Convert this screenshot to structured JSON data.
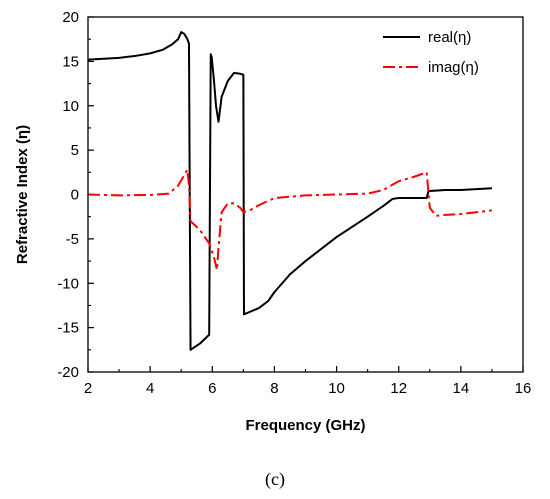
{
  "chart_data": {
    "type": "line",
    "xlabel": "Frequency (GHz)",
    "ylabel": "Refractive Index (η)",
    "xlim": [
      2,
      16
    ],
    "ylim": [
      -20,
      20
    ],
    "x_ticks": [
      2,
      4,
      6,
      8,
      10,
      12,
      14,
      16
    ],
    "y_ticks": [
      -20,
      -15,
      -10,
      -5,
      0,
      5,
      10,
      15,
      20
    ],
    "grid": false,
    "legend_position": "top-right",
    "caption": "(c)",
    "series": [
      {
        "name": "real(η)",
        "color": "#000000",
        "dash": "solid",
        "x": [
          2,
          2.5,
          3,
          3.5,
          4,
          4.4,
          4.7,
          4.9,
          5.0,
          5.1,
          5.2,
          5.25,
          5.3,
          5.6,
          5.9,
          5.95,
          5.98,
          6.05,
          6.12,
          6.2,
          6.3,
          6.5,
          6.7,
          6.9,
          7.0,
          7.02,
          7.5,
          7.8,
          8.0,
          8.5,
          9.0,
          10.0,
          11.0,
          11.5,
          11.8,
          12.0,
          12.5,
          12.9,
          12.95,
          13.0,
          13.5,
          14.0,
          14.5,
          15.0
        ],
        "y": [
          15.2,
          15.3,
          15.4,
          15.6,
          15.9,
          16.3,
          16.9,
          17.5,
          18.3,
          18.1,
          17.5,
          17.0,
          -17.5,
          -16.8,
          -15.8,
          15.8,
          15.5,
          13.0,
          10.0,
          8.2,
          11.0,
          12.8,
          13.7,
          13.6,
          13.5,
          -13.5,
          -12.8,
          -12.0,
          -11.0,
          -9.0,
          -7.5,
          -4.8,
          -2.5,
          -1.3,
          -0.5,
          -0.4,
          -0.4,
          -0.4,
          0.3,
          0.4,
          0.5,
          0.5,
          0.6,
          0.7
        ]
      },
      {
        "name": "imag(η)",
        "color": "#ff0000",
        "dash": "dash-dot",
        "x": [
          2,
          3,
          4,
          4.6,
          4.9,
          5.1,
          5.2,
          5.25,
          5.3,
          5.6,
          5.9,
          6.05,
          6.15,
          6.2,
          6.3,
          6.5,
          6.7,
          6.9,
          7.0,
          7.2,
          7.5,
          8.0,
          9.0,
          10.0,
          11.0,
          11.5,
          12.0,
          12.5,
          12.9,
          12.95,
          13.0,
          13.2,
          13.5,
          14.0,
          15.0
        ],
        "y": [
          0,
          -0.1,
          -0.05,
          0.1,
          1.0,
          2.2,
          2.8,
          1.0,
          -3.0,
          -4.0,
          -5.5,
          -7.0,
          -8.5,
          -6.0,
          -2.0,
          -1.0,
          -1.0,
          -1.5,
          -2.0,
          -1.8,
          -1.2,
          -0.4,
          -0.1,
          0.0,
          0.1,
          0.5,
          1.5,
          2.0,
          2.5,
          0.5,
          -1.5,
          -2.4,
          -2.3,
          -2.2,
          -1.8
        ]
      }
    ]
  }
}
